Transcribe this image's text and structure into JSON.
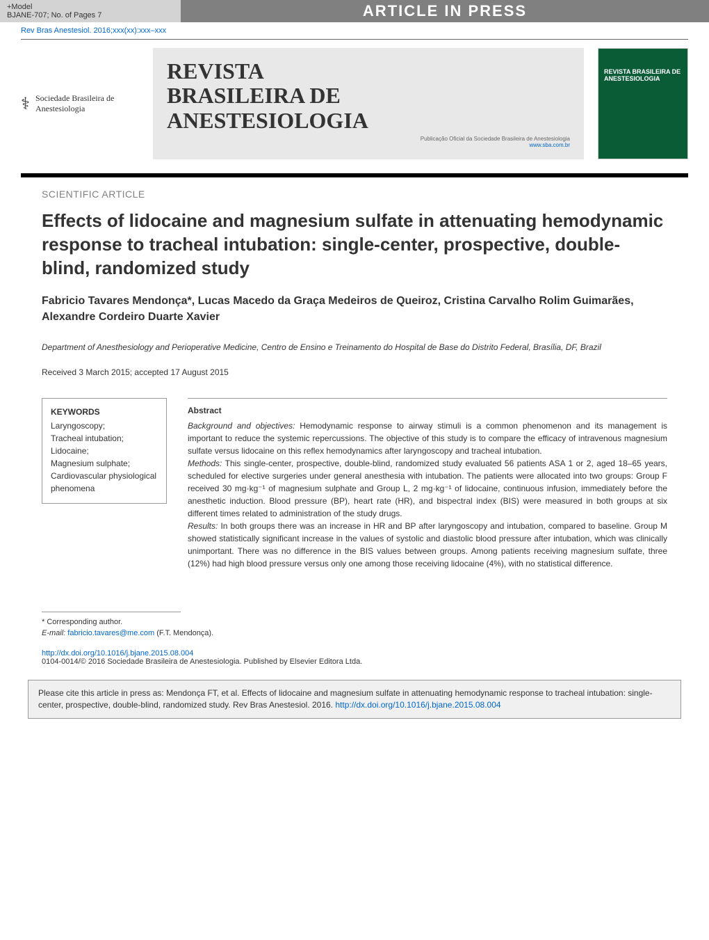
{
  "top_bar": {
    "model_line1": "+Model",
    "model_line2": "BJANE-707;   No. of Pages 7",
    "banner": "ARTICLE IN PRESS"
  },
  "citation_link": "Rev Bras Anestesiol. 2016;xxx(xx):xxx–xxx",
  "society_logo_text": "Sociedade Brasileira de Anestesiologia",
  "journal": {
    "title_line1": "REVISTA",
    "title_line2": "BRASILEIRA DE",
    "title_line3": "ANESTESIOLOGIA",
    "subtitle": "Publicação Oficial da Sociedade Brasileira de Anestesiologia",
    "website": "www.sba.com.br"
  },
  "cover": {
    "title": "REVISTA BRASILEIRA DE ANESTESIOLOGIA"
  },
  "article": {
    "type": "SCIENTIFIC ARTICLE",
    "title": "Effects of lidocaine and magnesium sulfate in attenuating hemodynamic response to tracheal intubation: single-center, prospective, double-blind, randomized study",
    "authors": "Fabricio Tavares Mendonça*, Lucas Macedo da Graça Medeiros de Queiroz, Cristina Carvalho Rolim Guimarães, Alexandre Cordeiro Duarte Xavier",
    "affiliation": "Department of Anesthesiology and Perioperative Medicine, Centro de Ensino e Treinamento do Hospital de Base do Distrito Federal, Brasília, DF, Brazil",
    "dates": "Received 3 March 2015; accepted 17 August 2015"
  },
  "keywords": {
    "heading": "KEYWORDS",
    "items": "Laryngoscopy;\nTracheal intubation;\nLidocaine;\nMagnesium sulphate;\nCardiovascular physiological phenomena"
  },
  "abstract": {
    "heading": "Abstract",
    "background_label": "Background and objectives:",
    "background_text": " Hemodynamic response to airway stimuli is a common phenomenon and its management is important to reduce the systemic repercussions. The objective of this study is to compare the efficacy of intravenous magnesium sulfate versus lidocaine on this reflex hemodynamics after laryngoscopy and tracheal intubation.",
    "methods_label": "Methods:",
    "methods_text": " This single-center, prospective, double-blind, randomized study evaluated 56 patients ASA 1 or 2, aged 18–65 years, scheduled for elective surgeries under general anesthesia with intubation. The patients were allocated into two groups: Group F received 30 mg·kg⁻¹ of magnesium sulphate and Group L, 2 mg·kg⁻¹ of lidocaine, continuous infusion, immediately before the anesthetic induction. Blood pressure (BP), heart rate (HR), and bispectral index (BIS) were measured in both groups at six different times related to administration of the study drugs.",
    "results_label": "Results:",
    "results_text": " In both groups there was an increase in HR and BP after laryngoscopy and intubation, compared to baseline. Group M showed statistically significant increase in the values of systolic and diastolic blood pressure after intubation, which was clinically unimportant. There was no difference in the BIS values between groups. Among patients receiving magnesium sulfate, three (12%) had high blood pressure versus only one among those receiving lidocaine (4%), with no statistical difference."
  },
  "footnotes": {
    "corresponding": "* Corresponding author.",
    "email_label": "E-mail:",
    "email": "fabricio.tavares@me.com",
    "email_suffix": " (F.T. Mendonça)."
  },
  "doi": {
    "url": "http://dx.doi.org/10.1016/j.bjane.2015.08.004",
    "copyright": "0104-0014/© 2016 Sociedade Brasileira de Anestesiologia. Published by Elsevier Editora Ltda."
  },
  "cite_box": {
    "text": "Please cite this article in press as: Mendonça FT, et al. Effects of lidocaine and magnesium sulfate in attenuating hemodynamic response to tracheal intubation: single-center, prospective, double-blind, randomized study. Rev Bras Anestesiol. 2016. ",
    "url": "http://dx.doi.org/10.1016/j.bjane.2015.08.004"
  },
  "colors": {
    "banner_bg": "#808080",
    "banner_text": "#ffffff",
    "model_bg": "#d3d3d3",
    "link": "#0066cc",
    "cover_bg": "#0a5c36",
    "journal_box_bg": "#e8e8e8",
    "cite_box_bg": "#f0f0f0",
    "text": "#333333",
    "grey_text": "#808080"
  }
}
